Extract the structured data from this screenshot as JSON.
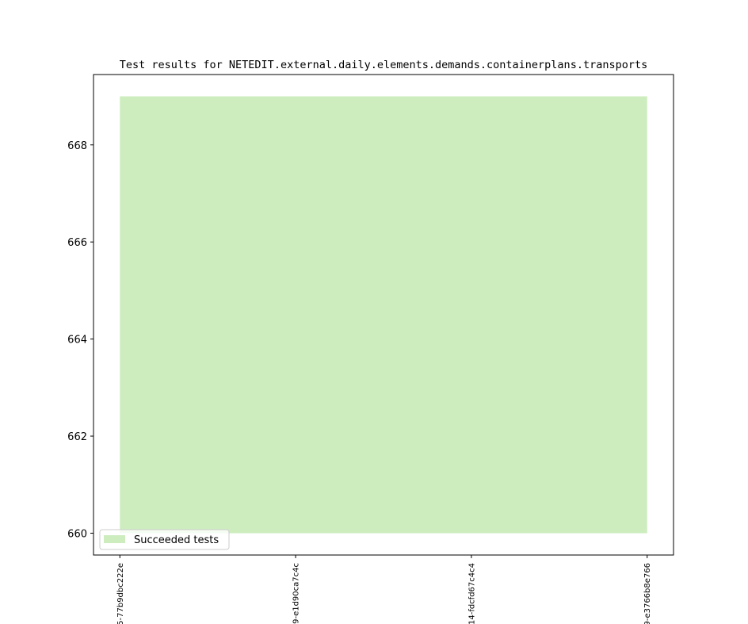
{
  "chart_data": {
    "type": "area",
    "title": "Test results for NETEDIT.external.daily.elements.demands.containerplans.transports",
    "categories": [
      "5-77b9dbc222e",
      "9-e1d90ca7c4c",
      "14-fdcfd67c4c4",
      "9-e3766b8e766"
    ],
    "series": [
      {
        "name": "Succeeded tests",
        "color": "#cdedbf",
        "values": [
          669,
          669,
          669,
          669
        ],
        "base": [
          660,
          660,
          660,
          660
        ]
      }
    ],
    "ylim": [
      659.55,
      669.45
    ],
    "yticks": [
      660,
      662,
      664,
      666,
      668
    ],
    "legend": "lower left"
  }
}
